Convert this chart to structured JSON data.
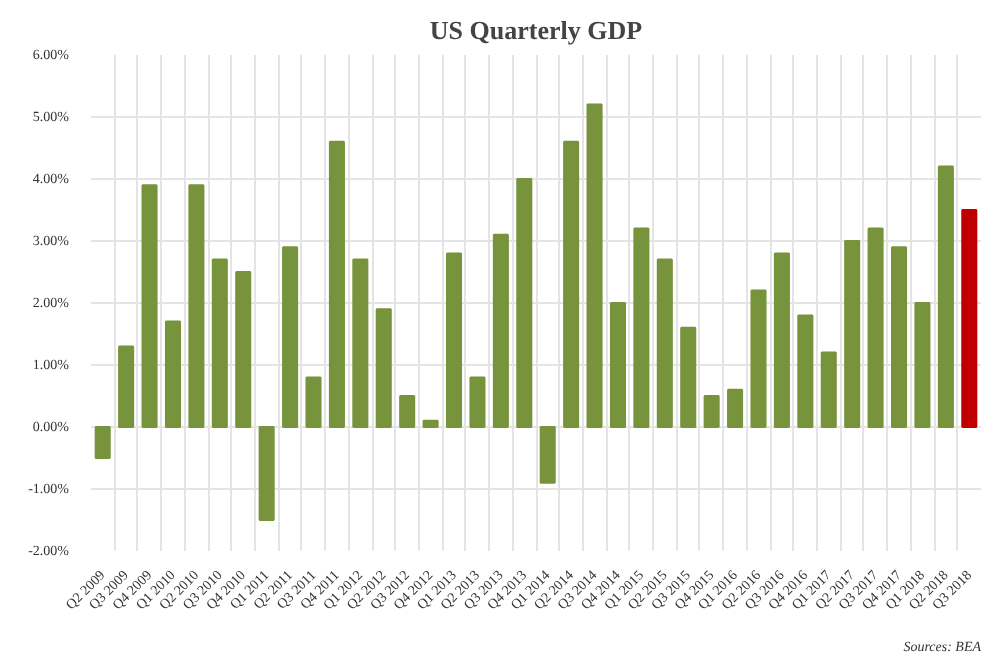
{
  "chart_data": {
    "type": "bar",
    "title": "US Quarterly GDP",
    "categories": [
      "Q2 2009",
      "Q3 2009",
      "Q4 2009",
      "Q1 2010",
      "Q2 2010",
      "Q3 2010",
      "Q4 2010",
      "Q1 2011",
      "Q2 2011",
      "Q3 2011",
      "Q4 2011",
      "Q1 2012",
      "Q2 2012",
      "Q3 2012",
      "Q4 2012",
      "Q1 2013",
      "Q2 2013",
      "Q3 2013",
      "Q4 2013",
      "Q1 2014",
      "Q2 2014",
      "Q3 2014",
      "Q4 2014",
      "Q1 2015",
      "Q2 2015",
      "Q3 2015",
      "Q4 2015",
      "Q1 2016",
      "Q2 2016",
      "Q3 2016",
      "Q4 2016",
      "Q1 2017",
      "Q2 2017",
      "Q3 2017",
      "Q4 2017",
      "Q1 2018",
      "Q2 2018",
      "Q3 2018"
    ],
    "values": [
      -0.5,
      1.3,
      3.9,
      1.7,
      3.9,
      2.7,
      2.5,
      -1.5,
      2.9,
      0.8,
      4.6,
      2.7,
      1.9,
      0.5,
      0.1,
      2.8,
      0.8,
      3.1,
      4.0,
      -0.9,
      4.6,
      5.2,
      2.0,
      3.2,
      2.7,
      1.6,
      0.5,
      0.6,
      2.2,
      2.8,
      1.8,
      1.2,
      3.0,
      3.2,
      2.9,
      2.0,
      4.2,
      3.5
    ],
    "colors": [
      "#77933c",
      "#77933c",
      "#77933c",
      "#77933c",
      "#77933c",
      "#77933c",
      "#77933c",
      "#77933c",
      "#77933c",
      "#77933c",
      "#77933c",
      "#77933c",
      "#77933c",
      "#77933c",
      "#77933c",
      "#77933c",
      "#77933c",
      "#77933c",
      "#77933c",
      "#77933c",
      "#77933c",
      "#77933c",
      "#77933c",
      "#77933c",
      "#77933c",
      "#77933c",
      "#77933c",
      "#77933c",
      "#77933c",
      "#77933c",
      "#77933c",
      "#77933c",
      "#77933c",
      "#77933c",
      "#77933c",
      "#77933c",
      "#77933c",
      "#c00000"
    ],
    "ylim": [
      -2,
      6
    ],
    "yticks": [
      {
        "value": -2,
        "label": "-2.00%"
      },
      {
        "value": -1,
        "label": "-1.00%"
      },
      {
        "value": 0,
        "label": "0.00%"
      },
      {
        "value": 1,
        "label": "1.00%"
      },
      {
        "value": 2,
        "label": "2.00%"
      },
      {
        "value": 3,
        "label": "3.00%"
      },
      {
        "value": 4,
        "label": "4.00%"
      },
      {
        "value": 5,
        "label": "5.00%"
      },
      {
        "value": 6,
        "label": "6.00%"
      }
    ],
    "grid": true,
    "annotations": [
      "Sources: BEA"
    ]
  }
}
